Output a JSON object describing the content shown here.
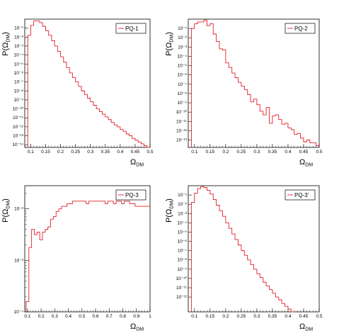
{
  "colors": {
    "histogram": "#e0202a",
    "axis": "#000000",
    "legend_border": "#000000"
  },
  "chart_data": [
    {
      "type": "histogram",
      "legend": "PQ-1",
      "legend_position": "top-right",
      "ylabel": "P(Ω_DM)",
      "xlabel": "Ω_DM",
      "yscale": "log",
      "grid": false,
      "xlim": [
        0.08,
        0.5
      ],
      "ylim_exp": [
        -14.3,
        0
      ],
      "xticks": [
        "0.1",
        "0.15",
        "0.2",
        "0.25",
        "0.3",
        "0.35",
        "0.4",
        "0.45",
        "0.5"
      ],
      "xtick_values": [
        0.1,
        0.15,
        0.2,
        0.25,
        0.3,
        0.35,
        0.4,
        0.45,
        0.5
      ],
      "yticks_exp": [
        -14,
        -13,
        -12,
        -11,
        -10,
        -9,
        -8,
        -7,
        -6,
        -5,
        -4,
        -3,
        -2,
        -1
      ],
      "bin_edges_start": 0.09,
      "bin_width": 0.01,
      "values_log10": [
        -1.8,
        -0.7,
        -0.2,
        -0.2,
        -0.4,
        -0.8,
        -1.3,
        -1.8,
        -2.4,
        -3.0,
        -3.6,
        -4.2,
        -4.8,
        -5.4,
        -6.0,
        -6.5,
        -7.0,
        -7.5,
        -8.0,
        -8.4,
        -8.8,
        -9.2,
        -9.6,
        -10.0,
        -10.3,
        -10.6,
        -10.9,
        -11.2,
        -11.5,
        -11.8,
        -12.0,
        -12.3,
        -12.5,
        -12.8,
        -13.0,
        -13.3,
        -13.5,
        -13.7,
        -13.9,
        -14.1,
        -14.3
      ]
    },
    {
      "type": "histogram",
      "legend": "PQ-2",
      "legend_position": "top-right",
      "ylabel": "P(Ω_DM)",
      "xlabel": "Ω_DM",
      "yscale": "log",
      "grid": false,
      "xlim": [
        0.08,
        0.5
      ],
      "ylim_exp": [
        -13.8,
        0
      ],
      "xticks": [
        "0.1",
        "0.15",
        "0.2",
        "0.25",
        "0.3",
        "0.35",
        "0.4",
        "0.45",
        "0.5"
      ],
      "xtick_values": [
        0.1,
        0.15,
        0.2,
        0.25,
        0.3,
        0.35,
        0.4,
        0.45,
        0.5
      ],
      "yticks_exp": [
        -13,
        -12,
        -11,
        -10,
        -9,
        -8,
        -7,
        -6,
        -5,
        -4,
        -3,
        -2,
        -1
      ],
      "bin_edges_start": 0.09,
      "bin_width": 0.01,
      "values_log10": [
        -1.0,
        -0.5,
        -0.3,
        -0.3,
        -0.1,
        -0.7,
        -0.5,
        -1.6,
        -2.4,
        -3.2,
        -3.3,
        -4.7,
        -5.2,
        -5.8,
        -6.3,
        -6.8,
        -7.2,
        -7.6,
        -8.1,
        -8.9,
        -8.6,
        -9.2,
        -9.9,
        -10.3,
        -9.5,
        -11.2,
        -10.4,
        -10.3,
        -10.8,
        -11.3,
        -11.2,
        -11.7,
        -11.9,
        -12.4,
        -12.3,
        -12.8,
        -13.2,
        -13.0,
        -13.3,
        -13.3,
        -13.6
      ]
    },
    {
      "type": "histogram",
      "legend": "PQ-3",
      "legend_position": "top-right",
      "ylabel": "P(Ω_DM)",
      "xlabel": "Ω_DM",
      "yscale": "log",
      "grid": false,
      "xlim": [
        0.08,
        1.0
      ],
      "ylim_exp": [
        -4,
        -1.55
      ],
      "xticks": [
        "0.1",
        "0.2",
        "0.3",
        "0.4",
        "0.5",
        "0.6",
        "0.7",
        "0.8",
        "0.9",
        "1"
      ],
      "xtick_values": [
        0.1,
        0.2,
        0.3,
        0.4,
        0.5,
        0.6,
        0.7,
        0.8,
        0.9,
        1.0
      ],
      "yticks_major": [
        {
          "exp": -2,
          "label": "10⁻²"
        },
        {
          "exp": -3,
          "label": "10⁻³"
        },
        {
          "exp": -4,
          "label": "10⁻⁴"
        }
      ],
      "bin_edges_start": 0.09,
      "bin_width": 0.02,
      "values_log10": [
        -3.8,
        -2.75,
        -2.4,
        -2.5,
        -2.45,
        -2.6,
        -2.45,
        -2.4,
        -2.35,
        -2.2,
        -2.15,
        -2.05,
        -2.0,
        -1.95,
        -1.95,
        -1.9,
        -1.9,
        -1.85,
        -1.85,
        -1.85,
        -1.85,
        -1.85,
        -1.9,
        -1.85,
        -1.85,
        -1.85,
        -1.85,
        -1.85,
        -1.85,
        -1.9,
        -1.85,
        -1.85,
        -1.9,
        -1.85,
        -1.85,
        -1.9,
        -1.85,
        -1.85,
        -1.9,
        -1.9,
        -1.95,
        -1.95,
        -1.95,
        -1.95,
        -1.95,
        -1.95
      ]
    },
    {
      "type": "histogram",
      "legend": "PQ-3'",
      "legend_position": "top-right",
      "ylabel": "P(Ω_DM)",
      "xlabel": "Ω_DM",
      "yscale": "log",
      "grid": false,
      "xlim": [
        0.08,
        0.5
      ],
      "ylim_exp": [
        -13.6,
        0
      ],
      "xticks": [
        "0.1",
        "0.15",
        "0.2",
        "0.25",
        "0.3",
        "0.35",
        "0.4",
        "0.45",
        "0.5"
      ],
      "xtick_values": [
        0.1,
        0.15,
        0.2,
        0.25,
        0.3,
        0.35,
        0.4,
        0.45,
        0.5
      ],
      "yticks_exp": [
        -12,
        -11,
        -10,
        -9,
        -8,
        -7,
        -6,
        -5,
        -4,
        -3,
        -2,
        -1
      ],
      "bin_edges_start": 0.09,
      "bin_width": 0.01,
      "values_log10": [
        -1.8,
        -0.8,
        -0.3,
        -0.1,
        -0.2,
        -0.5,
        -0.9,
        -1.5,
        -2.1,
        -2.7,
        -3.3,
        -4.0,
        -4.6,
        -5.2,
        -5.8,
        -6.4,
        -7.0,
        -7.5,
        -8.0,
        -8.5,
        -9.0,
        -9.5,
        -9.9,
        -10.4,
        -10.8,
        -11.2,
        -11.6,
        -12.0,
        -12.3,
        -12.7,
        -13.0,
        -13.3,
        -13.6
      ]
    }
  ]
}
